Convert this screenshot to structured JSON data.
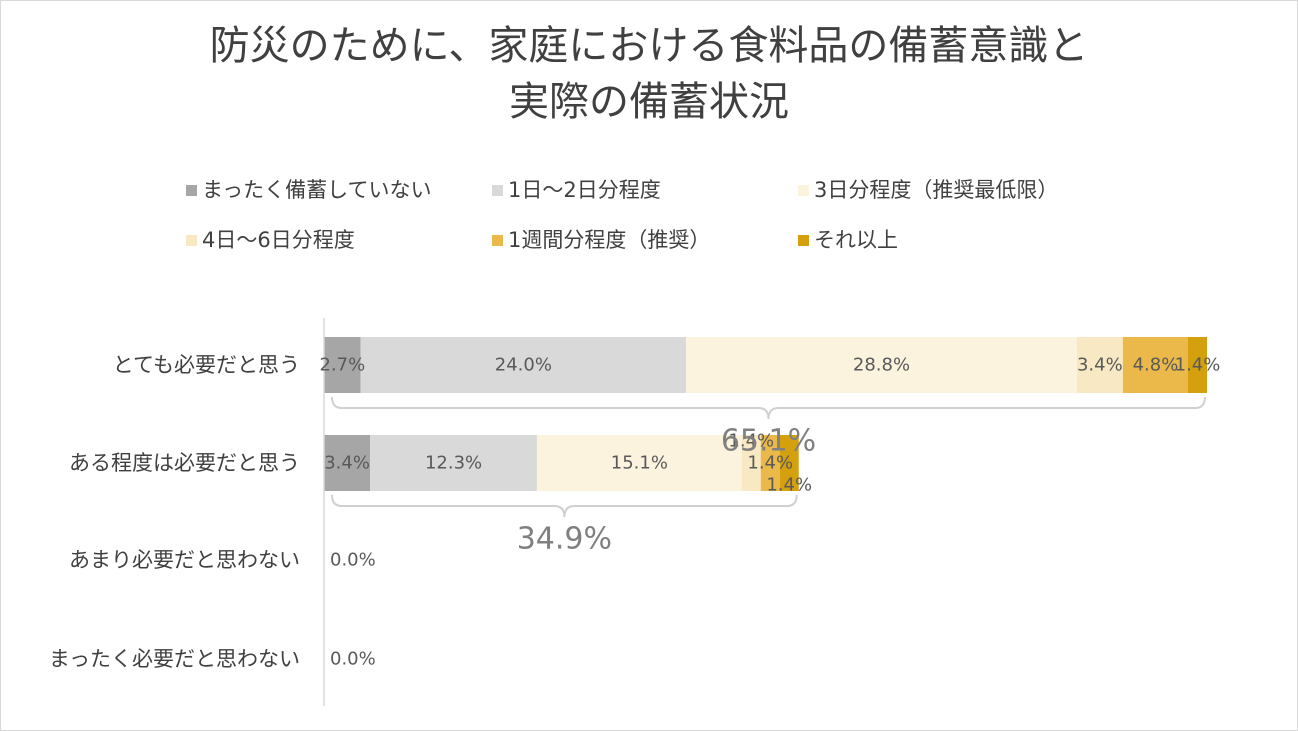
{
  "chart_data": {
    "type": "bar",
    "orientation": "horizontal",
    "stacked": true,
    "title": [
      "防災のために、家庭における食料品の備蓄意識と",
      "実際の備蓄状況"
    ],
    "categories": [
      "とても必要だと思う",
      "ある程度は必要だと思う",
      "あまり必要だと思わない",
      "まったく必要だと思わない"
    ],
    "series": [
      {
        "name": "まったく備蓄していない",
        "color": "#a6a6a6",
        "values": [
          2.7,
          3.4,
          0.0,
          0.0
        ],
        "labels": [
          "2.7%",
          "3.4%",
          "0.0%",
          "0.0%"
        ]
      },
      {
        "name": "1日～2日分程度",
        "color": "#d9d9d9",
        "values": [
          24.0,
          12.3,
          0.0,
          0.0
        ],
        "labels": [
          "24.0%",
          "12.3%",
          "",
          ""
        ]
      },
      {
        "name": "3日分程度（推奨最低限）",
        "color": "#fcf3df",
        "values": [
          28.8,
          15.1,
          0.0,
          0.0
        ],
        "labels": [
          "28.8%",
          "15.1%",
          "",
          ""
        ]
      },
      {
        "name": "4日～6日分程度",
        "color": "#f8e9c4",
        "values": [
          3.4,
          1.4,
          0.0,
          0.0
        ],
        "labels": [
          "3.4%",
          "1.4%",
          "",
          ""
        ]
      },
      {
        "name": "1週間分程度（推奨）",
        "color": "#ebb94a",
        "values": [
          4.8,
          1.4,
          0.0,
          0.0
        ],
        "labels": [
          "4.8%",
          "1.4%",
          "",
          ""
        ]
      },
      {
        "name": "それ以上",
        "color": "#d4a00e",
        "values": [
          1.4,
          1.4,
          0.0,
          0.0
        ],
        "labels": [
          "1.4%",
          "1.4%",
          "",
          ""
        ]
      }
    ],
    "totals": [
      {
        "category": "とても必要だと思う",
        "label": "65.1%"
      },
      {
        "category": "ある程度は必要だと思う",
        "label": "34.9%"
      }
    ],
    "xlim": [
      0,
      65.1
    ],
    "grid": false,
    "legend_position": "top"
  }
}
